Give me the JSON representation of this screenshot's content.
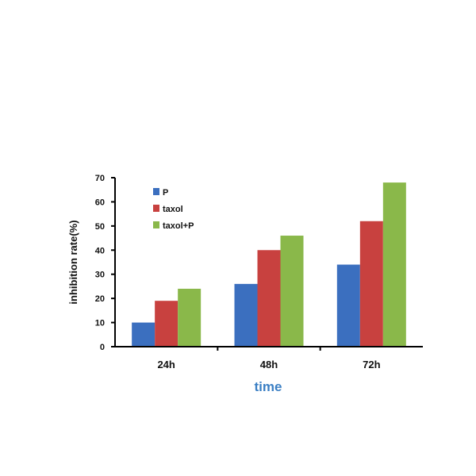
{
  "chart_data": {
    "type": "bar",
    "categories": [
      "24h",
      "48h",
      "72h"
    ],
    "series": [
      {
        "name": "P",
        "values": [
          10,
          26,
          34
        ],
        "color": "#3b6fbf"
      },
      {
        "name": "taxol",
        "values": [
          19,
          40,
          52
        ],
        "color": "#c8413f"
      },
      {
        "name": "taxol+P",
        "values": [
          24,
          46,
          68
        ],
        "color": "#8ab84a"
      }
    ],
    "title": "",
    "xlabel": "time",
    "ylabel": "inhibition rate(%)",
    "ylim": [
      0,
      70
    ],
    "yticks": [
      0,
      10,
      20,
      30,
      40,
      50,
      60,
      70
    ],
    "xlabel_color": "#3b7fc4",
    "grid": false,
    "legend_position": "top-left"
  }
}
